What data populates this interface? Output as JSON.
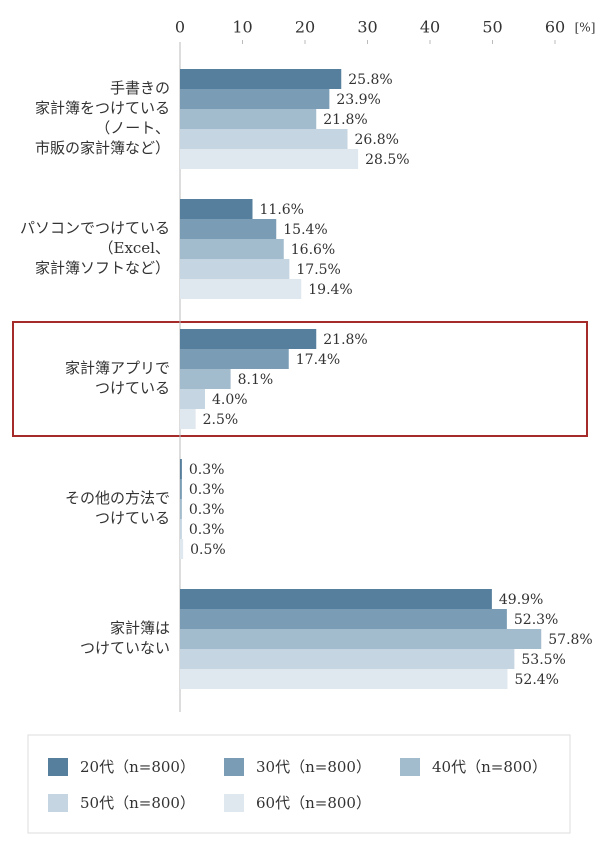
{
  "chart_data": {
    "type": "hbar",
    "categories": [
      "手書きの\n家計簿をつけている\n（ノート、\n市販の家計簿など）",
      "パソコンでつけている\n（Excel、\n家計簿ソフトなど）",
      "家計簿アプリで\nつけている",
      "その他の方法で\nつけている",
      "家計簿は\nつけていない"
    ],
    "x_unit": "[%]",
    "xlim": [
      0,
      60
    ],
    "xticks": [
      0,
      10,
      20,
      30,
      40,
      50,
      60
    ],
    "series": [
      {
        "name": "20代（n=800）",
        "color": "#557f9c",
        "values": [
          25.8,
          11.6,
          21.8,
          0.3,
          49.9
        ],
        "value_labels": [
          "25.8%",
          "11.6%",
          "21.8%",
          "0.3%",
          "49.9%"
        ]
      },
      {
        "name": "30代（n=800）",
        "color": "#7a9db5",
        "values": [
          23.9,
          15.4,
          17.4,
          0.3,
          52.3
        ],
        "value_labels": [
          "23.9%",
          "15.4%",
          "17.4%",
          "0.3%",
          "52.3%"
        ]
      },
      {
        "name": "40代（n=800）",
        "color": "#a3bccd",
        "values": [
          21.8,
          16.6,
          8.1,
          0.3,
          57.8
        ],
        "value_labels": [
          "21.8%",
          "16.6%",
          "8.1%",
          "0.3%",
          "57.8%"
        ]
      },
      {
        "name": "50代（n=800）",
        "color": "#c5d5e1",
        "values": [
          26.8,
          17.5,
          4.0,
          0.3,
          53.5
        ],
        "value_labels": [
          "26.8%",
          "17.5%",
          "4.0%",
          "0.3%",
          "53.5%"
        ]
      },
      {
        "name": "60代（n=800）",
        "color": "#e0e8ef",
        "values": [
          28.5,
          19.4,
          2.5,
          0.5,
          52.4
        ],
        "value_labels": [
          "28.5%",
          "19.4%",
          "2.5%",
          "0.5%",
          "52.4%"
        ]
      }
    ]
  }
}
